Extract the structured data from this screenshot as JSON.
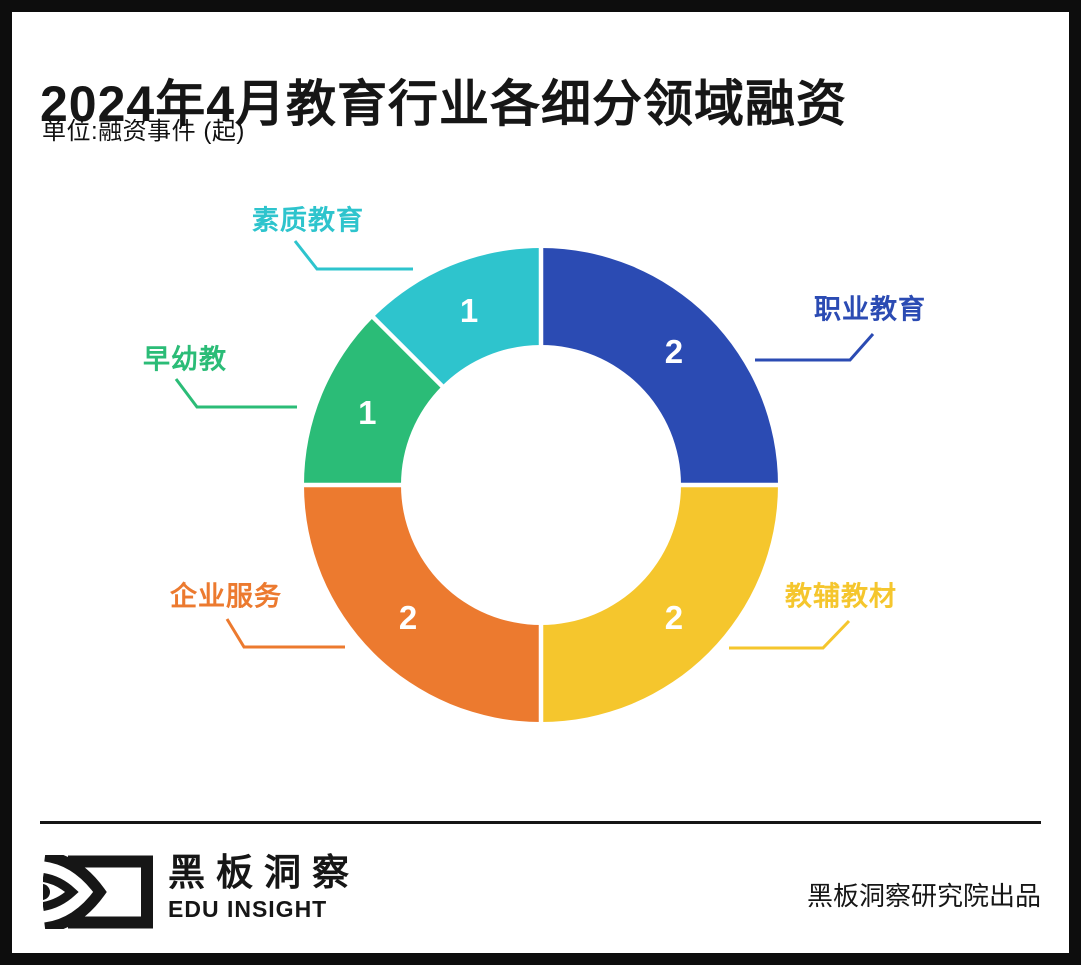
{
  "header": {
    "title": "2024年4月教育行业各细分领域融资",
    "unit_note": "单位:融资事件 (起)"
  },
  "chart_data": {
    "type": "pie",
    "subtype": "donut",
    "title": "2024年4月教育行业各细分领域融资",
    "unit": "融资事件(起)",
    "clockwise": true,
    "start_angle": "12-oclock",
    "total": 8,
    "segments": [
      {
        "label": "职业教育",
        "value": 2,
        "color": "#2B4BB3"
      },
      {
        "label": "教辅教材",
        "value": 2,
        "color": "#F5C62D"
      },
      {
        "label": "企业服务",
        "value": 2,
        "color": "#EC7A2F"
      },
      {
        "label": "早幼教",
        "value": 1,
        "color": "#2BBC77"
      },
      {
        "label": "素质教育",
        "value": 1,
        "color": "#2EC4CD"
      }
    ]
  },
  "footer": {
    "logo_cn": "黑板洞察",
    "logo_en": "EDU INSIGHT",
    "credit": "黑板洞察研究院出品"
  }
}
